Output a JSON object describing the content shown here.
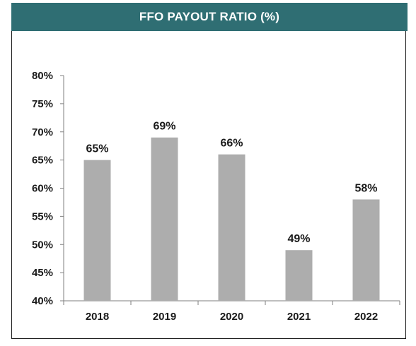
{
  "title": "FFO PAYOUT RATIO (%)",
  "colors": {
    "header_bg": "#2f6e73",
    "bar": "#adadad",
    "axis": "#7f7f7f"
  },
  "chart_data": {
    "type": "bar",
    "title": "FFO PAYOUT RATIO (%)",
    "categories": [
      "2018",
      "2019",
      "2020",
      "2021",
      "2022"
    ],
    "values": [
      65,
      69,
      66,
      49,
      58
    ],
    "data_labels": [
      "65%",
      "69%",
      "66%",
      "49%",
      "58%"
    ],
    "ylim": [
      40,
      80
    ],
    "yticks": [
      40,
      45,
      50,
      55,
      60,
      65,
      70,
      75,
      80
    ],
    "ytick_labels": [
      "40%",
      "45%",
      "50%",
      "55%",
      "60%",
      "65%",
      "70%",
      "75%",
      "80%"
    ],
    "xlabel": "",
    "ylabel": "",
    "grid": false,
    "legend": "none"
  }
}
